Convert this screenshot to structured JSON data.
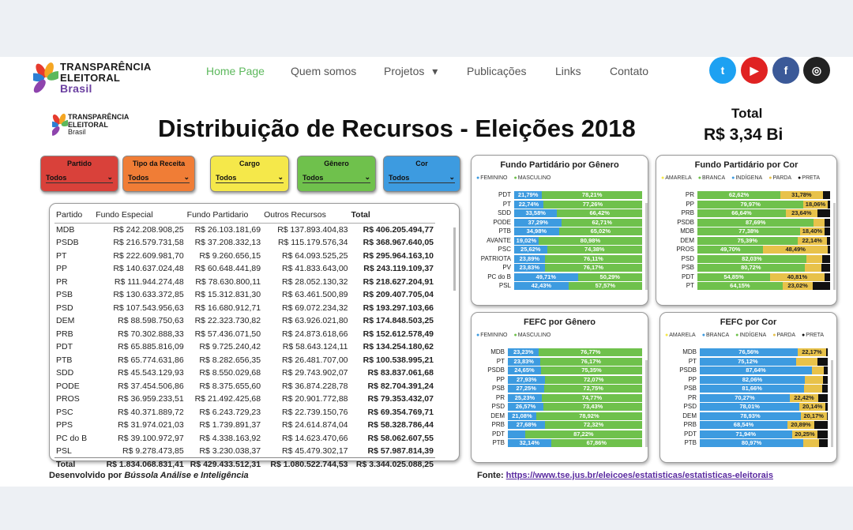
{
  "site": {
    "logo_line1": "TRANSPARÊNCIA",
    "logo_line2": "ELEITORAL",
    "logo_line3": "Brasil",
    "nav": [
      {
        "label": "Home Page"
      },
      {
        "label": "Quem somos"
      },
      {
        "label": "Projetos",
        "arrow": "▾"
      },
      {
        "label": "Publicações"
      },
      {
        "label": "Links"
      },
      {
        "label": "Contato"
      }
    ],
    "social": [
      {
        "name": "twitter-icon",
        "glyph": "t",
        "color": "#1da1f2"
      },
      {
        "name": "youtube-icon",
        "glyph": "▶",
        "color": "#e02222"
      },
      {
        "name": "facebook-icon",
        "glyph": "f",
        "color": "#3b5998"
      },
      {
        "name": "instagram-icon",
        "glyph": "◎",
        "color": "#222222"
      }
    ]
  },
  "dashboard": {
    "title": "Distribuição de Recursos - Eleições 2018",
    "total_label": "Total",
    "total_value": "R$ 3,34 Bi",
    "slicers": [
      {
        "label": "Partido",
        "value": "Todos",
        "color": "#d9413a"
      },
      {
        "label": "Tipo da Receita",
        "value": "Todos",
        "color": "#f07d36"
      },
      {
        "label": "Cargo",
        "value": "Todos",
        "color": "#f5e84a"
      },
      {
        "label": "Gênero",
        "value": "Todos",
        "color": "#6fc14c"
      },
      {
        "label": "Cor",
        "value": "Todos",
        "color": "#3d9be0"
      }
    ],
    "table": {
      "headers": [
        "Partido",
        "Fundo Especial",
        "Fundo Partidario",
        "Outros Recursos",
        "Total"
      ],
      "rows": [
        [
          "MDB",
          "R$ 242.208.908,25",
          "R$ 26.103.181,69",
          "R$ 137.893.404,83",
          "R$ 406.205.494,77"
        ],
        [
          "PSDB",
          "R$ 216.579.731,58",
          "R$ 37.208.332,13",
          "R$ 115.179.576,34",
          "R$ 368.967.640,05"
        ],
        [
          "PT",
          "R$ 222.609.981,70",
          "R$ 9.260.656,15",
          "R$ 64.093.525,25",
          "R$ 295.964.163,10"
        ],
        [
          "PP",
          "R$ 140.637.024,48",
          "R$ 60.648.441,89",
          "R$ 41.833.643,00",
          "R$ 243.119.109,37"
        ],
        [
          "PR",
          "R$ 111.944.274,48",
          "R$ 78.630.800,11",
          "R$ 28.052.130,32",
          "R$ 218.627.204,91"
        ],
        [
          "PSB",
          "R$ 130.633.372,85",
          "R$ 15.312.831,30",
          "R$ 63.461.500,89",
          "R$ 209.407.705,04"
        ],
        [
          "PSD",
          "R$ 107.543.956,63",
          "R$ 16.680.912,71",
          "R$ 69.072.234,32",
          "R$ 193.297.103,66"
        ],
        [
          "DEM",
          "R$ 88.598.750,63",
          "R$ 22.323.730,82",
          "R$ 63.926.021,80",
          "R$ 174.848.503,25"
        ],
        [
          "PRB",
          "R$ 70.302.888,33",
          "R$ 57.436.071,50",
          "R$ 24.873.618,66",
          "R$ 152.612.578,49"
        ],
        [
          "PDT",
          "R$ 65.885.816,09",
          "R$ 9.725.240,42",
          "R$ 58.643.124,11",
          "R$ 134.254.180,62"
        ],
        [
          "PTB",
          "R$ 65.774.631,86",
          "R$ 8.282.656,35",
          "R$ 26.481.707,00",
          "R$ 100.538.995,21"
        ],
        [
          "SDD",
          "R$ 45.543.129,93",
          "R$ 8.550.029,68",
          "R$ 29.743.902,07",
          "R$ 83.837.061,68"
        ],
        [
          "PODE",
          "R$ 37.454.506,86",
          "R$ 8.375.655,60",
          "R$ 36.874.228,78",
          "R$ 82.704.391,24"
        ],
        [
          "PROS",
          "R$ 36.959.233,51",
          "R$ 21.492.425,68",
          "R$ 20.901.772,88",
          "R$ 79.353.432,07"
        ],
        [
          "PSC",
          "R$ 40.371.889,72",
          "R$ 6.243.729,23",
          "R$ 22.739.150,76",
          "R$ 69.354.769,71"
        ],
        [
          "PPS",
          "R$ 31.974.021,03",
          "R$ 1.739.891,37",
          "R$ 24.614.874,04",
          "R$ 58.328.786,44"
        ],
        [
          "PC do B",
          "R$ 39.100.972,97",
          "R$ 4.338.163,92",
          "R$ 14.623.470,66",
          "R$ 58.062.607,55"
        ],
        [
          "PSL",
          "R$ 9.278.473,85",
          "R$ 3.230.038,37",
          "R$ 45.479.302,17",
          "R$ 57.987.814,39"
        ]
      ],
      "total": [
        "Total",
        "R$ 1.834.068.831,41",
        "R$ 429.433.512,31",
        "R$ 1.080.522.744,53",
        "R$ 3.344.025.088,25"
      ]
    },
    "footer_left_prefix": "Desenvolvido por ",
    "footer_left_brand": "Bússola Análise e Inteligência",
    "footer_right_prefix": "Fonte: ",
    "footer_right_link": "https://www.tse.jus.br/eleicoes/estatisticas/estatisticas-eleitorais"
  },
  "chart_data": [
    {
      "type": "bar",
      "stacked": true,
      "orientation": "horizontal",
      "title": "Fundo Partidário por Gênero",
      "legend": [
        "FEMININO",
        "MASCULINO"
      ],
      "colors": [
        "#3d9be0",
        "#6fc14c"
      ],
      "categories": [
        "PDT",
        "PT",
        "SDD",
        "PODE",
        "PTB",
        "AVANTE",
        "PSC",
        "PATRIOTA",
        "PV",
        "PC do B",
        "PSL"
      ],
      "series": [
        {
          "name": "FEMININO",
          "values": [
            21.79,
            22.74,
            33.58,
            37.29,
            34.98,
            19.02,
            25.62,
            23.89,
            23.83,
            49.71,
            42.43
          ]
        },
        {
          "name": "MASCULINO",
          "values": [
            78.21,
            77.26,
            66.42,
            62.71,
            65.02,
            80.98,
            74.38,
            76.11,
            76.17,
            50.29,
            57.57
          ]
        }
      ],
      "labels": [
        [
          "21,79%",
          "78,21%"
        ],
        [
          "22,74%",
          "77,26%"
        ],
        [
          "33,58%",
          "66,42%"
        ],
        [
          "37,29%",
          "62,71%"
        ],
        [
          "34,98%",
          "65,02%"
        ],
        [
          "19,02%",
          "80,98%"
        ],
        [
          "25,62%",
          "74,38%"
        ],
        [
          "23,89%",
          "76,11%"
        ],
        [
          "23,83%",
          "76,17%"
        ],
        [
          "49,71%",
          "50,29%"
        ],
        [
          "42,43%",
          "57,57%"
        ]
      ]
    },
    {
      "type": "bar",
      "stacked": true,
      "orientation": "horizontal",
      "title": "Fundo Partidário por Cor",
      "legend": [
        "AMARELA",
        "BRANCA",
        "INDÍGENA",
        "PARDA",
        "PRETA"
      ],
      "colors": [
        "#f5e84a",
        "#6fc14c",
        "#3d9be0",
        "#e8c24a",
        "#111111"
      ],
      "categories": [
        "PR",
        "PP",
        "PRB",
        "PSDB",
        "MDB",
        "DEM",
        "PROS",
        "PSD",
        "PSB",
        "PDT",
        "PT"
      ],
      "series": [
        {
          "name": "AMARELA",
          "values": [
            0,
            0,
            0,
            0,
            0,
            0,
            0,
            0,
            0,
            0,
            0
          ]
        },
        {
          "name": "BRANCA",
          "values": [
            62.62,
            79.97,
            66.64,
            87.69,
            77.38,
            75.39,
            49.7,
            82.03,
            80.72,
            54.85,
            64.15
          ]
        },
        {
          "name": "INDÍGENA",
          "values": [
            0,
            0,
            0,
            0,
            0,
            0,
            0,
            0,
            0,
            0,
            0
          ]
        },
        {
          "name": "PARDA",
          "values": [
            31.78,
            18.06,
            23.64,
            8,
            18.4,
            22.14,
            48.49,
            12,
            13,
            40.81,
            23.02
          ]
        },
        {
          "name": "PRETA",
          "values": [
            5.6,
            1.97,
            9.72,
            4.31,
            4.22,
            2.47,
            1.81,
            5.97,
            6.28,
            4.34,
            12.83
          ]
        }
      ],
      "labels": [
        [
          "",
          "62,62%",
          "",
          "31,78%",
          ""
        ],
        [
          "",
          "79,97%",
          "",
          "18,06%",
          ""
        ],
        [
          "",
          "66,64%",
          "",
          "23,64%",
          ""
        ],
        [
          "",
          "87,69%",
          "",
          "",
          ""
        ],
        [
          "",
          "77,38%",
          "",
          "18,40%",
          ""
        ],
        [
          "",
          "75,39%",
          "",
          "22,14%",
          ""
        ],
        [
          "",
          "49,70%",
          "",
          "48,49%",
          ""
        ],
        [
          "",
          "82,03%",
          "",
          "",
          ""
        ],
        [
          "",
          "80,72%",
          "",
          "",
          ""
        ],
        [
          "",
          "54,85%",
          "",
          "40,81%",
          ""
        ],
        [
          "",
          "64,15%",
          "",
          "23,02%",
          ""
        ]
      ]
    },
    {
      "type": "bar",
      "stacked": true,
      "orientation": "horizontal",
      "title": "FEFC por Gênero",
      "legend": [
        "FEMININO",
        "MASCULINO"
      ],
      "colors": [
        "#3d9be0",
        "#6fc14c"
      ],
      "categories": [
        "MDB",
        "PT",
        "PSDB",
        "PP",
        "PSB",
        "PR",
        "PSD",
        "DEM",
        "PRB",
        "PDT",
        "PTB"
      ],
      "series": [
        {
          "name": "FEMININO",
          "values": [
            23.23,
            23.83,
            24.65,
            27.93,
            27.25,
            25.23,
            26.57,
            21.08,
            27.68,
            12.78,
            32.14
          ]
        },
        {
          "name": "MASCULINO",
          "values": [
            76.77,
            76.17,
            75.35,
            72.07,
            72.75,
            74.77,
            73.43,
            78.92,
            72.32,
            87.22,
            67.86
          ]
        }
      ],
      "labels": [
        [
          "23,23%",
          "76,77%"
        ],
        [
          "23,83%",
          "76,17%"
        ],
        [
          "24,65%",
          "75,35%"
        ],
        [
          "27,93%",
          "72,07%"
        ],
        [
          "27,25%",
          "72,75%"
        ],
        [
          "25,23%",
          "74,77%"
        ],
        [
          "26,57%",
          "73,43%"
        ],
        [
          "21,08%",
          "78,92%"
        ],
        [
          "27,68%",
          "72,32%"
        ],
        [
          "",
          "87,22%"
        ],
        [
          "32,14%",
          "67,86%"
        ]
      ]
    },
    {
      "type": "bar",
      "stacked": true,
      "orientation": "horizontal",
      "title": "FEFC por Cor",
      "legend": [
        "AMARELA",
        "BRANCA",
        "INDÍGENA",
        "PARDA",
        "PRETA"
      ],
      "colors": [
        "#f5e84a",
        "#3d9be0",
        "#6fc14c",
        "#e8c24a",
        "#111111"
      ],
      "categories": [
        "MDB",
        "PT",
        "PSDB",
        "PP",
        "PSB",
        "PR",
        "PSD",
        "DEM",
        "PRB",
        "PDT",
        "PTB"
      ],
      "series": [
        {
          "name": "AMARELA",
          "values": [
            0,
            0,
            0,
            0,
            0,
            0,
            0,
            0,
            0,
            0,
            0
          ]
        },
        {
          "name": "BRANCA",
          "values": [
            76.56,
            75.12,
            87.64,
            82.06,
            81.66,
            70.27,
            78.01,
            78.93,
            68.54,
            71.94,
            80.97
          ]
        },
        {
          "name": "INDÍGENA",
          "values": [
            0,
            0,
            0,
            0,
            0,
            0,
            0,
            0,
            0,
            0,
            0
          ]
        },
        {
          "name": "PARDA",
          "values": [
            22.17,
            17,
            9,
            14,
            14,
            22.42,
            20.14,
            20.17,
            20.89,
            20.25,
            12
          ]
        },
        {
          "name": "PRETA",
          "values": [
            1.27,
            7.88,
            3.36,
            3.94,
            4.34,
            7.31,
            1.85,
            0.9,
            10.57,
            7.81,
            7.03
          ]
        }
      ],
      "labels": [
        [
          "",
          "76,56%",
          "",
          "22,17%",
          ""
        ],
        [
          "",
          "75,12%",
          "",
          "",
          ""
        ],
        [
          "",
          "87,64%",
          "",
          "",
          ""
        ],
        [
          "",
          "82,06%",
          "",
          "",
          ""
        ],
        [
          "",
          "81,66%",
          "",
          "",
          ""
        ],
        [
          "",
          "70,27%",
          "",
          "22,42%",
          ""
        ],
        [
          "",
          "78,01%",
          "",
          "20,14%",
          ""
        ],
        [
          "",
          "78,93%",
          "",
          "20,17%",
          ""
        ],
        [
          "",
          "68,54%",
          "",
          "20,89%",
          ""
        ],
        [
          "",
          "71,94%",
          "",
          "20,25%",
          ""
        ],
        [
          "",
          "80,97%",
          "",
          "",
          ""
        ]
      ]
    }
  ]
}
